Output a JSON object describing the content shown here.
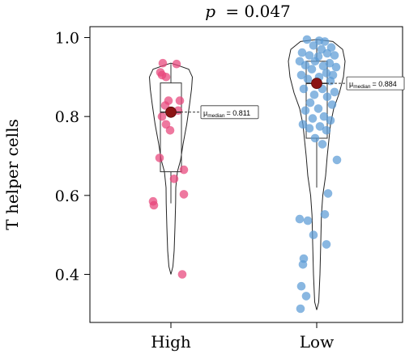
{
  "chart_data": {
    "type": "violin-box-scatter",
    "title_p_symbol": "p",
    "title_rest": "= 0.047",
    "ylabel": "T helper cells",
    "xlabel": "",
    "ylim": [
      0.3,
      1.0
    ],
    "yticks": [
      0.4,
      0.6,
      0.8,
      1.0
    ],
    "ytick_labels": [
      "0.4",
      "0.6",
      "0.8",
      "1.0"
    ],
    "grid": false,
    "legend": "none",
    "groups": [
      {
        "label": "High",
        "color": "#e8447a",
        "median": 0.811,
        "q1": 0.66,
        "q3": 0.885,
        "whisker_low": 0.58,
        "whisker_high": 0.933,
        "median_label_prefix": "μ",
        "median_label_sub": "median",
        "median_label_value": "= 0.811",
        "points": [
          {
            "x": 0.07,
            "y": 0.933
          },
          {
            "x": -0.1,
            "y": 0.935
          },
          {
            "x": -0.13,
            "y": 0.912
          },
          {
            "x": -0.11,
            "y": 0.905
          },
          {
            "x": -0.06,
            "y": 0.9
          },
          {
            "x": -0.03,
            "y": 0.84
          },
          {
            "x": 0.11,
            "y": 0.84
          },
          {
            "x": -0.07,
            "y": 0.828
          },
          {
            "x": 0.09,
            "y": 0.815
          },
          {
            "x": -0.11,
            "y": 0.8
          },
          {
            "x": -0.06,
            "y": 0.78
          },
          {
            "x": -0.01,
            "y": 0.765
          },
          {
            "x": -0.14,
            "y": 0.695
          },
          {
            "x": 0.16,
            "y": 0.665
          },
          {
            "x": 0.04,
            "y": 0.642
          },
          {
            "x": 0.16,
            "y": 0.603
          },
          {
            "x": -0.22,
            "y": 0.585
          },
          {
            "x": -0.21,
            "y": 0.575
          },
          {
            "x": 0.14,
            "y": 0.4
          }
        ]
      },
      {
        "label": "Low",
        "color": "#5b9bd5",
        "median": 0.884,
        "q1": 0.745,
        "q3": 0.94,
        "whisker_low": 0.62,
        "whisker_high": 0.995,
        "median_label_prefix": "μ",
        "median_label_sub": "median",
        "median_label_value": "= 0.884",
        "points": [
          {
            "x": -0.12,
            "y": 0.995
          },
          {
            "x": 0.03,
            "y": 0.992
          },
          {
            "x": 0.1,
            "y": 0.99
          },
          {
            "x": -0.04,
            "y": 0.98
          },
          {
            "x": 0.18,
            "y": 0.975
          },
          {
            "x": 0.06,
            "y": 0.97
          },
          {
            "x": -0.18,
            "y": 0.962
          },
          {
            "x": 0.13,
            "y": 0.96
          },
          {
            "x": -0.09,
            "y": 0.955
          },
          {
            "x": 0.02,
            "y": 0.952
          },
          {
            "x": 0.22,
            "y": 0.955
          },
          {
            "x": -0.21,
            "y": 0.94
          },
          {
            "x": -0.02,
            "y": 0.94
          },
          {
            "x": 0.16,
            "y": 0.935
          },
          {
            "x": -0.14,
            "y": 0.93
          },
          {
            "x": 0.08,
            "y": 0.928
          },
          {
            "x": 0.24,
            "y": 0.925
          },
          {
            "x": -0.06,
            "y": 0.92
          },
          {
            "x": 0.12,
            "y": 0.91
          },
          {
            "x": -0.19,
            "y": 0.905
          },
          {
            "x": 0.2,
            "y": 0.905
          },
          {
            "x": 0.03,
            "y": 0.9
          },
          {
            "x": -0.11,
            "y": 0.895
          },
          {
            "x": 0.17,
            "y": 0.89
          },
          {
            "x": 0.07,
            "y": 0.87
          },
          {
            "x": -0.16,
            "y": 0.87
          },
          {
            "x": 0.22,
            "y": 0.862
          },
          {
            "x": -0.03,
            "y": 0.855
          },
          {
            "x": 0.13,
            "y": 0.85
          },
          {
            "x": -0.08,
            "y": 0.835
          },
          {
            "x": 0.19,
            "y": 0.83
          },
          {
            "x": 0.02,
            "y": 0.82
          },
          {
            "x": -0.14,
            "y": 0.815
          },
          {
            "x": 0.09,
            "y": 0.8
          },
          {
            "x": -0.05,
            "y": 0.795
          },
          {
            "x": 0.17,
            "y": 0.79
          },
          {
            "x": -0.17,
            "y": 0.78
          },
          {
            "x": 0.04,
            "y": 0.775
          },
          {
            "x": -0.09,
            "y": 0.77
          },
          {
            "x": 0.12,
            "y": 0.765
          },
          {
            "x": -0.02,
            "y": 0.745
          },
          {
            "x": 0.07,
            "y": 0.73
          },
          {
            "x": 0.25,
            "y": 0.69
          },
          {
            "x": 0.14,
            "y": 0.605
          },
          {
            "x": -0.21,
            "y": 0.54
          },
          {
            "x": 0.1,
            "y": 0.552
          },
          {
            "x": -0.11,
            "y": 0.536
          },
          {
            "x": 0.12,
            "y": 0.476
          },
          {
            "x": -0.04,
            "y": 0.5
          },
          {
            "x": -0.16,
            "y": 0.44
          },
          {
            "x": -0.17,
            "y": 0.425
          },
          {
            "x": -0.19,
            "y": 0.37
          },
          {
            "x": -0.13,
            "y": 0.345
          },
          {
            "x": -0.2,
            "y": 0.313
          }
        ]
      }
    ]
  }
}
